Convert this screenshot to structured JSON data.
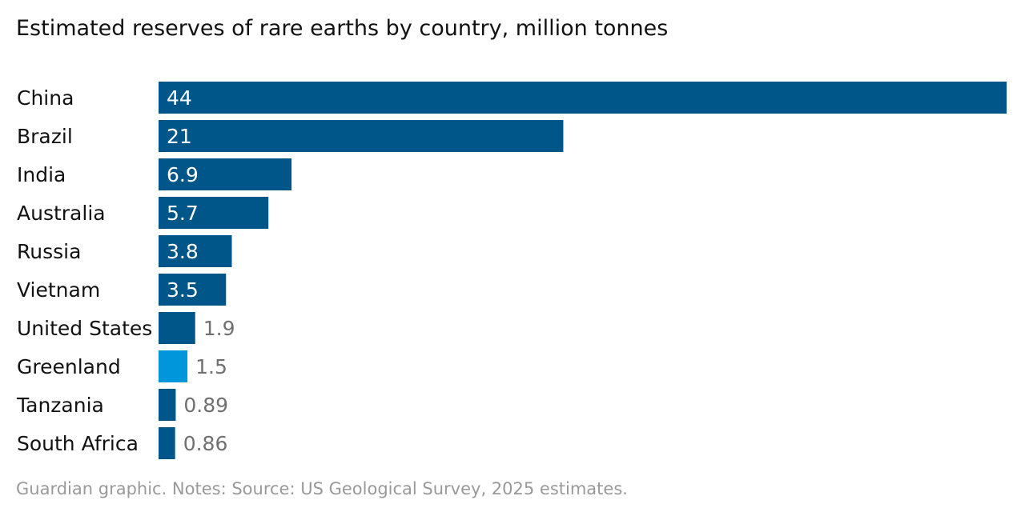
{
  "title": "Estimated reserves of rare earths by country, million tonnes",
  "footer": "Guardian graphic. Notes: Source: US Geological Survey, 2025 estimates.",
  "colors": {
    "bar": "#005689",
    "highlight": "#0096dc",
    "label_inside": "#ffffff",
    "label_outside": "#707070",
    "category": "#121212"
  },
  "chart_data": {
    "type": "bar",
    "orientation": "horizontal",
    "title": "Estimated reserves of rare earths by country, million tonnes",
    "categories": [
      "China",
      "Brazil",
      "India",
      "Australia",
      "Russia",
      "Vietnam",
      "United States",
      "Greenland",
      "Tanzania",
      "South Africa"
    ],
    "values": [
      44,
      21,
      6.9,
      5.7,
      3.8,
      3.5,
      1.9,
      1.5,
      0.89,
      0.86
    ],
    "value_labels": [
      "44",
      "21",
      "6.9",
      "5.7",
      "3.8",
      "3.5",
      "1.9",
      "1.5",
      "0.89",
      "0.86"
    ],
    "highlighted": [
      "Greenland"
    ],
    "xlim": [
      0,
      44
    ],
    "grid": false,
    "legend": "none"
  }
}
